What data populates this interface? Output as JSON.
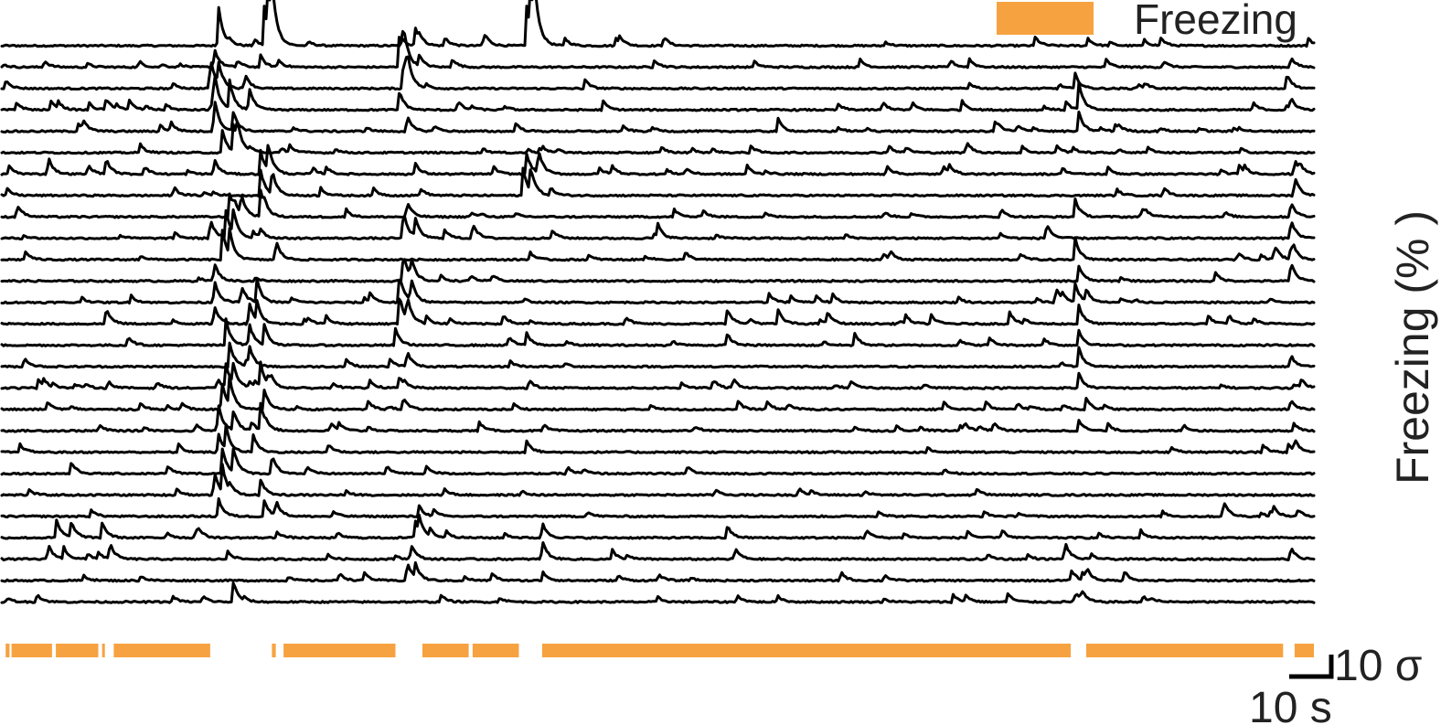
{
  "chart_data": {
    "type": "line",
    "description_kind": "stacked calcium traces with freezing epochs",
    "legend": {
      "label": "Freezing",
      "color": "#F7A240",
      "position": "top-right"
    },
    "trace_color": "#000000",
    "n_traces": 27,
    "duration_s": 340,
    "scale_bar": {
      "time_label": "10 s",
      "amplitude_label": "10 σ"
    },
    "ylabel": "Freezing (% )",
    "freezing_epochs_s": [
      [
        1,
        2
      ],
      [
        2.5,
        13
      ],
      [
        14,
        25
      ],
      [
        26,
        26.5
      ],
      [
        29,
        54
      ],
      [
        70,
        71
      ],
      [
        73,
        102
      ],
      [
        109,
        121
      ],
      [
        122,
        134
      ],
      [
        140,
        277
      ],
      [
        281,
        332
      ],
      [
        335,
        340
      ]
    ],
    "traces": [
      {
        "baseline": 0,
        "peaks": [
          [
            56,
            22
          ],
          [
            68,
            19
          ],
          [
            69,
            22
          ],
          [
            70,
            18
          ],
          [
            107,
            10
          ],
          [
            136,
            20
          ],
          [
            137,
            22
          ],
          [
            138,
            18
          ]
        ]
      },
      {
        "baseline": 0,
        "peaks": [
          [
            55,
            10
          ],
          [
            67,
            6
          ],
          [
            103,
            18
          ],
          [
            104,
            14
          ],
          [
            108,
            6
          ],
          [
            334,
            5
          ]
        ]
      },
      {
        "baseline": 0,
        "peaks": [
          [
            54,
            16
          ],
          [
            56,
            12
          ],
          [
            63,
            8
          ],
          [
            104,
            14
          ],
          [
            105,
            10
          ],
          [
            278,
            8
          ],
          [
            333,
            8
          ]
        ]
      },
      {
        "baseline": 0,
        "peaks": [
          [
            27,
            6
          ],
          [
            55,
            16
          ],
          [
            59,
            14
          ],
          [
            64,
            12
          ],
          [
            103,
            10
          ],
          [
            279,
            14
          ],
          [
            334,
            6
          ]
        ]
      },
      {
        "baseline": 0,
        "peaks": [
          [
            55,
            18
          ],
          [
            60,
            10
          ],
          [
            105,
            8
          ],
          [
            201,
            7
          ],
          [
            279,
            10
          ]
        ]
      },
      {
        "baseline": 0,
        "peaks": [
          [
            57,
            12
          ],
          [
            60,
            14
          ],
          [
            61,
            10
          ],
          [
            250,
            6
          ]
        ]
      },
      {
        "baseline": 0,
        "peaks": [
          [
            12,
            9
          ],
          [
            27,
            8
          ],
          [
            55,
            8
          ],
          [
            67,
            12
          ],
          [
            69,
            10
          ],
          [
            107,
            6
          ],
          [
            136,
            10
          ],
          [
            139,
            12
          ],
          [
            335,
            8
          ]
        ]
      },
      {
        "baseline": 0,
        "peaks": [
          [
            67,
            10
          ],
          [
            70,
            12
          ],
          [
            135,
            14
          ],
          [
            137,
            12
          ],
          [
            335,
            10
          ]
        ]
      },
      {
        "baseline": 0,
        "peaks": [
          [
            59,
            12
          ],
          [
            62,
            10
          ],
          [
            67,
            14
          ],
          [
            105,
            8
          ],
          [
            278,
            10
          ],
          [
            334,
            8
          ]
        ]
      },
      {
        "baseline": 0,
        "peaks": [
          [
            54,
            10
          ],
          [
            58,
            14
          ],
          [
            60,
            12
          ],
          [
            104,
            14
          ],
          [
            107,
            10
          ],
          [
            122,
            8
          ],
          [
            170,
            6
          ],
          [
            334,
            10
          ]
        ]
      },
      {
        "baseline": 0,
        "peaks": [
          [
            57,
            16
          ],
          [
            59,
            12
          ],
          [
            71,
            10
          ],
          [
            278,
            12
          ],
          [
            334,
            8
          ]
        ]
      },
      {
        "baseline": 0,
        "peaks": [
          [
            55,
            10
          ],
          [
            104,
            14
          ],
          [
            106,
            10
          ],
          [
            279,
            8
          ],
          [
            334,
            10
          ]
        ]
      },
      {
        "baseline": 0,
        "peaks": [
          [
            55,
            12
          ],
          [
            66,
            12
          ],
          [
            103,
            14
          ],
          [
            106,
            12
          ],
          [
            278,
            10
          ],
          [
            281,
            6
          ]
        ]
      },
      {
        "baseline": 0,
        "peaks": [
          [
            27,
            8
          ],
          [
            55,
            10
          ],
          [
            64,
            12
          ],
          [
            66,
            10
          ],
          [
            103,
            10
          ],
          [
            105,
            12
          ],
          [
            188,
            8
          ],
          [
            201,
            8
          ],
          [
            214,
            6
          ],
          [
            279,
            10
          ]
        ]
      },
      {
        "baseline": 0,
        "peaks": [
          [
            58,
            14
          ],
          [
            64,
            12
          ],
          [
            68,
            10
          ],
          [
            102,
            8
          ],
          [
            136,
            6
          ],
          [
            188,
            6
          ],
          [
            221,
            6
          ],
          [
            279,
            8
          ]
        ]
      },
      {
        "baseline": 0,
        "peaks": [
          [
            59,
            12
          ],
          [
            64,
            10
          ],
          [
            105,
            8
          ],
          [
            279,
            10
          ],
          [
            334,
            6
          ]
        ]
      },
      {
        "baseline": 0,
        "peaks": [
          [
            58,
            12
          ],
          [
            60,
            10
          ],
          [
            67,
            12
          ],
          [
            103,
            6
          ],
          [
            279,
            8
          ]
        ]
      },
      {
        "baseline": 0,
        "peaks": [
          [
            57,
            10
          ],
          [
            59,
            14
          ],
          [
            68,
            10
          ],
          [
            104,
            6
          ],
          [
            281,
            6
          ],
          [
            334,
            5
          ]
        ]
      },
      {
        "baseline": 0,
        "peaks": [
          [
            56,
            12
          ],
          [
            60,
            10
          ],
          [
            67,
            10
          ],
          [
            279,
            6
          ]
        ]
      },
      {
        "baseline": 0,
        "peaks": [
          [
            56,
            10
          ],
          [
            58,
            12
          ],
          [
            65,
            10
          ],
          [
            136,
            6
          ],
          [
            335,
            6
          ]
        ]
      },
      {
        "baseline": 0,
        "peaks": [
          [
            18,
            6
          ],
          [
            57,
            14
          ],
          [
            60,
            12
          ],
          [
            70,
            10
          ]
        ]
      },
      {
        "baseline": 0,
        "peaks": [
          [
            55,
            12
          ],
          [
            57,
            14
          ],
          [
            67,
            8
          ]
        ]
      },
      {
        "baseline": 0,
        "peaks": [
          [
            56,
            10
          ],
          [
            68,
            8
          ],
          [
            71,
            8
          ],
          [
            108,
            6
          ]
        ]
      },
      {
        "baseline": 0,
        "peaks": [
          [
            14,
            10
          ],
          [
            18,
            8
          ],
          [
            26,
            8
          ],
          [
            107,
            10
          ],
          [
            108,
            8
          ],
          [
            140,
            8
          ],
          [
            188,
            6
          ]
        ]
      },
      {
        "baseline": 0,
        "peaks": [
          [
            12,
            8
          ],
          [
            16,
            6
          ],
          [
            28,
            8
          ],
          [
            106,
            8
          ],
          [
            140,
            10
          ],
          [
            190,
            6
          ],
          [
            334,
            6
          ]
        ]
      },
      {
        "baseline": 0,
        "peaks": [
          [
            105,
            10
          ],
          [
            107,
            8
          ],
          [
            277,
            6
          ]
        ]
      },
      {
        "baseline": 0,
        "peaks": [
          [
            60,
            10
          ]
        ]
      }
    ]
  }
}
